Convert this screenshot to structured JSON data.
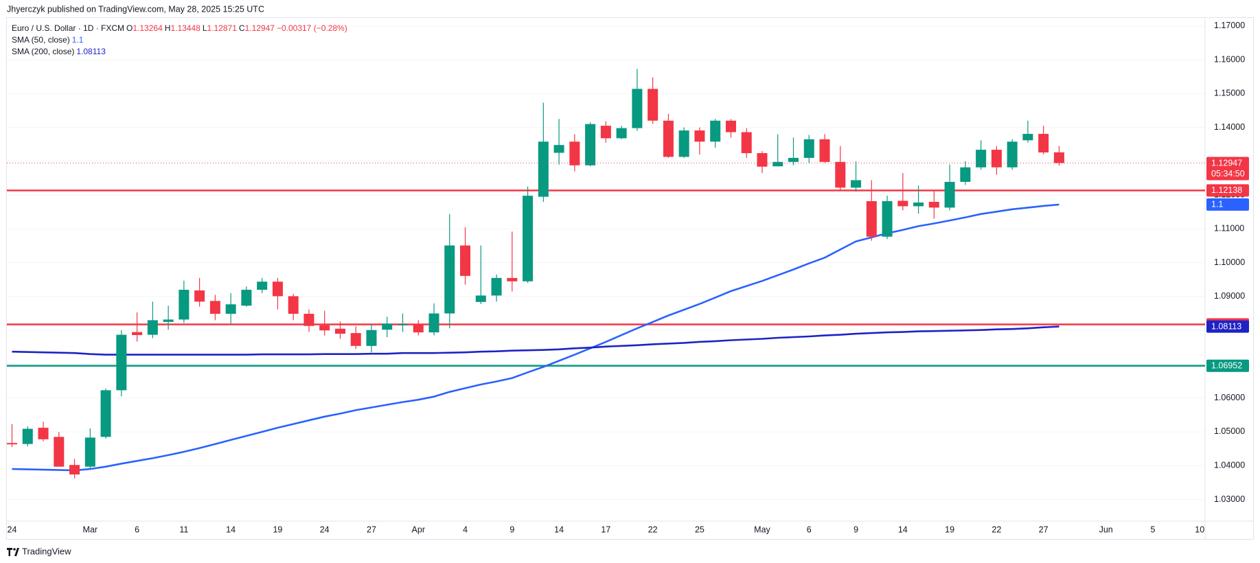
{
  "header": {
    "published": "Jhyerczyk published on TradingView.com, May 28, 2025 15:25 UTC",
    "symbol": "Euro / U.S. Dollar · 1D · FXCM",
    "ohlc_labels": [
      "O",
      "H",
      "L",
      "C"
    ],
    "change": "−0.00317 (−0.28%)",
    "countdown": "05:34:50"
  },
  "footer": {
    "brand": "TradingView"
  },
  "chart_data": {
    "type": "candlestick",
    "categories": [
      "24",
      null,
      null,
      null,
      null,
      "Mar",
      null,
      null,
      "6",
      null,
      null,
      "11",
      null,
      null,
      "14",
      null,
      null,
      "19",
      null,
      null,
      "24",
      null,
      null,
      "27",
      null,
      null,
      "Apr",
      null,
      null,
      "4",
      null,
      null,
      "9",
      null,
      null,
      "14",
      null,
      null,
      "17",
      null,
      null,
      "22",
      null,
      null,
      "25",
      null,
      null,
      null,
      "May",
      null,
      null,
      "6",
      null,
      null,
      "9",
      null,
      null,
      "14",
      null,
      null,
      "19",
      null,
      null,
      "22",
      null,
      null,
      "27",
      null,
      null,
      null,
      "Jun",
      null,
      null,
      "5",
      null,
      null,
      "10"
    ],
    "open": [
      1.0467,
      1.0464,
      1.0512,
      1.0485,
      1.0402,
      1.0397,
      1.0485,
      1.0623,
      1.0795,
      1.0787,
      1.0825,
      1.0832,
      1.0918,
      1.0887,
      1.0849,
      1.0873,
      1.092,
      1.0944,
      1.0901,
      1.0849,
      1.0815,
      1.0805,
      1.0792,
      1.0754,
      1.0802,
      1.0815,
      1.0817,
      1.0794,
      1.085,
      1.1051,
      1.0884,
      1.0903,
      1.0955,
      1.0945,
      1.1195,
      1.1325,
      1.1358,
      1.1288,
      1.1405,
      1.1368,
      1.1398,
      1.1514,
      1.142,
      1.1313,
      1.1391,
      1.1358,
      1.142,
      1.1386,
      1.1324,
      1.1285,
      1.1298,
      1.131,
      1.1365,
      1.1298,
      1.1222,
      1.1182,
      1.1077,
      1.1183,
      1.1167,
      1.118,
      1.1163,
      1.1239,
      1.1282,
      1.1334,
      1.1282,
      1.1362,
      1.1381,
      1.13264,
      null,
      null,
      null,
      null,
      null,
      null,
      null,
      null,
      null
    ],
    "high": [
      1.0523,
      1.0516,
      1.053,
      1.05,
      1.042,
      1.051,
      1.0628,
      1.08,
      1.0853,
      1.0885,
      1.0873,
      1.0947,
      1.0955,
      1.0905,
      1.091,
      1.093,
      1.0955,
      1.0955,
      1.0908,
      1.0862,
      1.0858,
      1.0826,
      1.0812,
      1.0818,
      1.084,
      1.085,
      1.083,
      1.088,
      1.1144,
      1.1105,
      1.1051,
      1.0965,
      1.1092,
      1.1225,
      1.1473,
      1.1425,
      1.138,
      1.1415,
      1.1418,
      1.1405,
      1.1573,
      1.1548,
      1.144,
      1.14,
      1.14,
      1.1425,
      1.1425,
      1.1398,
      1.133,
      1.138,
      1.137,
      1.1378,
      1.138,
      1.1345,
      1.13,
      1.1244,
      1.1198,
      1.1265,
      1.1228,
      1.1215,
      1.129,
      1.13,
      1.1362,
      1.1345,
      1.1365,
      1.142,
      1.1405,
      1.13448,
      null,
      null,
      null,
      null,
      null,
      null,
      null,
      null,
      null
    ],
    "low": [
      1.0455,
      1.0457,
      1.0472,
      1.0397,
      1.0362,
      1.039,
      1.048,
      1.0605,
      1.0767,
      1.0777,
      1.0802,
      1.0822,
      1.087,
      1.083,
      1.082,
      1.087,
      1.091,
      1.0862,
      1.083,
      1.0795,
      1.0785,
      1.0775,
      1.0745,
      1.0735,
      1.078,
      1.0795,
      1.0785,
      1.0785,
      1.0806,
      1.0935,
      1.0878,
      1.0885,
      1.0915,
      1.094,
      1.118,
      1.129,
      1.127,
      1.1285,
      1.1355,
      1.1365,
      1.139,
      1.141,
      1.131,
      1.131,
      1.132,
      1.134,
      1.137,
      1.131,
      1.1265,
      1.1285,
      1.1288,
      1.1295,
      1.1295,
      1.1215,
      1.121,
      1.1065,
      1.107,
      1.1155,
      1.1145,
      1.113,
      1.1155,
      1.123,
      1.1275,
      1.126,
      1.1275,
      1.1355,
      1.132,
      1.12871,
      null,
      null,
      null,
      null,
      null,
      null,
      null,
      null,
      null
    ],
    "close": [
      1.0463,
      1.0509,
      1.0478,
      1.0397,
      1.0374,
      1.0483,
      1.0623,
      1.0787,
      1.0786,
      1.083,
      1.0832,
      1.092,
      1.0885,
      1.0849,
      1.0877,
      1.092,
      1.0944,
      1.0901,
      1.0849,
      1.0813,
      1.08,
      1.079,
      1.0754,
      1.0801,
      1.082,
      1.0818,
      1.0794,
      1.085,
      1.1051,
      1.0961,
      1.0903,
      1.0955,
      1.0945,
      1.1198,
      1.1358,
      1.1348,
      1.1288,
      1.141,
      1.1368,
      1.1398,
      1.1514,
      1.142,
      1.1313,
      1.1391,
      1.1358,
      1.142,
      1.1386,
      1.1324,
      1.1284,
      1.1298,
      1.131,
      1.1365,
      1.1298,
      1.1222,
      1.1244,
      1.1077,
      1.1182,
      1.1167,
      1.1178,
      1.1163,
      1.1239,
      1.1282,
      1.1334,
      1.1282,
      1.1358,
      1.1381,
      1.1326,
      1.12947,
      null,
      null,
      null,
      null,
      null,
      null,
      null,
      null,
      null
    ],
    "up_color": "#089981",
    "down_color": "#f23645",
    "series": [
      {
        "name": "SMA (50, close)",
        "color": "#2962ff",
        "last_value_label": "1.1",
        "values": [
          1.039,
          1.0389,
          1.0388,
          1.0387,
          1.0386,
          1.039,
          1.0397,
          1.0406,
          1.0414,
          1.0422,
          1.0431,
          1.0441,
          1.0452,
          1.0464,
          1.0476,
          1.0488,
          1.05,
          1.0512,
          1.0523,
          1.0534,
          1.0545,
          1.0554,
          1.0564,
          1.0572,
          1.058,
          1.0588,
          1.0595,
          1.0604,
          1.0618,
          1.0629,
          1.064,
          1.0649,
          1.0659,
          1.0676,
          1.0692,
          1.071,
          1.0728,
          1.0747,
          1.0766,
          1.0786,
          1.0806,
          1.0825,
          1.0844,
          1.0861,
          1.0878,
          1.0897,
          1.0916,
          1.0931,
          1.0946,
          1.0963,
          1.098,
          1.0998,
          1.1015,
          1.1039,
          1.1063,
          1.1075,
          1.1087,
          1.1097,
          1.1108,
          1.1116,
          1.1125,
          1.1134,
          1.1144,
          1.1151,
          1.1158,
          1.1163,
          1.1168,
          1.1172,
          null,
          null,
          null,
          null,
          null,
          null,
          null,
          null,
          null
        ]
      },
      {
        "name": "SMA (200, close)",
        "color": "#1e22c4",
        "values": [
          1.0737,
          1.0736,
          1.0735,
          1.0734,
          1.0733,
          1.073,
          1.0728,
          1.0728,
          1.0728,
          1.0728,
          1.0728,
          1.0728,
          1.0728,
          1.0728,
          1.0728,
          1.0728,
          1.0729,
          1.0729,
          1.0729,
          1.0729,
          1.073,
          1.073,
          1.073,
          1.0731,
          1.0731,
          1.0733,
          1.0733,
          1.0733,
          1.0734,
          1.0735,
          1.0737,
          1.0738,
          1.074,
          1.0741,
          1.0742,
          1.0744,
          1.0747,
          1.0749,
          1.0752,
          1.0754,
          1.0756,
          1.0759,
          1.0761,
          1.0763,
          1.0766,
          1.0768,
          1.0771,
          1.0773,
          1.0775,
          1.0778,
          1.078,
          1.0782,
          1.0785,
          1.0787,
          1.079,
          1.0792,
          1.0794,
          1.0795,
          1.0797,
          1.0798,
          1.0799,
          1.08,
          1.0801,
          1.0803,
          1.0804,
          1.0806,
          1.0809,
          1.08113,
          null,
          null,
          null,
          null,
          null,
          null,
          null,
          null,
          null
        ]
      }
    ],
    "levels": [
      {
        "value": 1.12138,
        "color": "#f23645"
      },
      {
        "value": 1.08176,
        "color": "#f23645"
      },
      {
        "value": 1.06952,
        "color": "#089981"
      }
    ],
    "ylim": [
      1.0236,
      1.1724
    ],
    "yticks": [
      {
        "value": 1.03,
        "label": "1.03000"
      },
      {
        "value": 1.04,
        "label": "1.04000"
      },
      {
        "value": 1.05,
        "label": "1.05000"
      },
      {
        "value": 1.06,
        "label": "1.06000"
      },
      {
        "value": 1.07,
        "label": "1.07000"
      },
      {
        "value": 1.08,
        "label": "1.08000"
      },
      {
        "value": 1.09,
        "label": "1.09000"
      },
      {
        "value": 1.1,
        "label": "1.10000"
      },
      {
        "value": 1.11,
        "label": "1.11000"
      },
      {
        "value": 1.12,
        "label": "1.12000"
      },
      {
        "value": 1.13,
        "label": "1.13000"
      },
      {
        "value": 1.14,
        "label": "1.14000"
      },
      {
        "value": 1.15,
        "label": "1.15000"
      },
      {
        "value": 1.16,
        "label": "1.16000"
      },
      {
        "value": 1.17,
        "label": "1.17000"
      }
    ],
    "grid": true
  }
}
